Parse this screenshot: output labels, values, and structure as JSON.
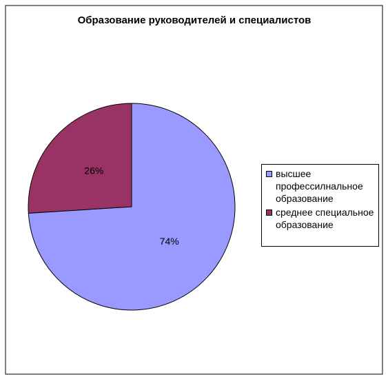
{
  "chart_data": {
    "type": "pie",
    "title": "Образование руководителей и специалистов",
    "categories": [
      "высшее профессилнальное образование",
      "среднее специальное образование"
    ],
    "values": [
      74,
      26
    ],
    "value_labels": [
      "74%",
      "26%"
    ],
    "colors": [
      "#9999ff",
      "#993366"
    ],
    "legend": "right"
  }
}
